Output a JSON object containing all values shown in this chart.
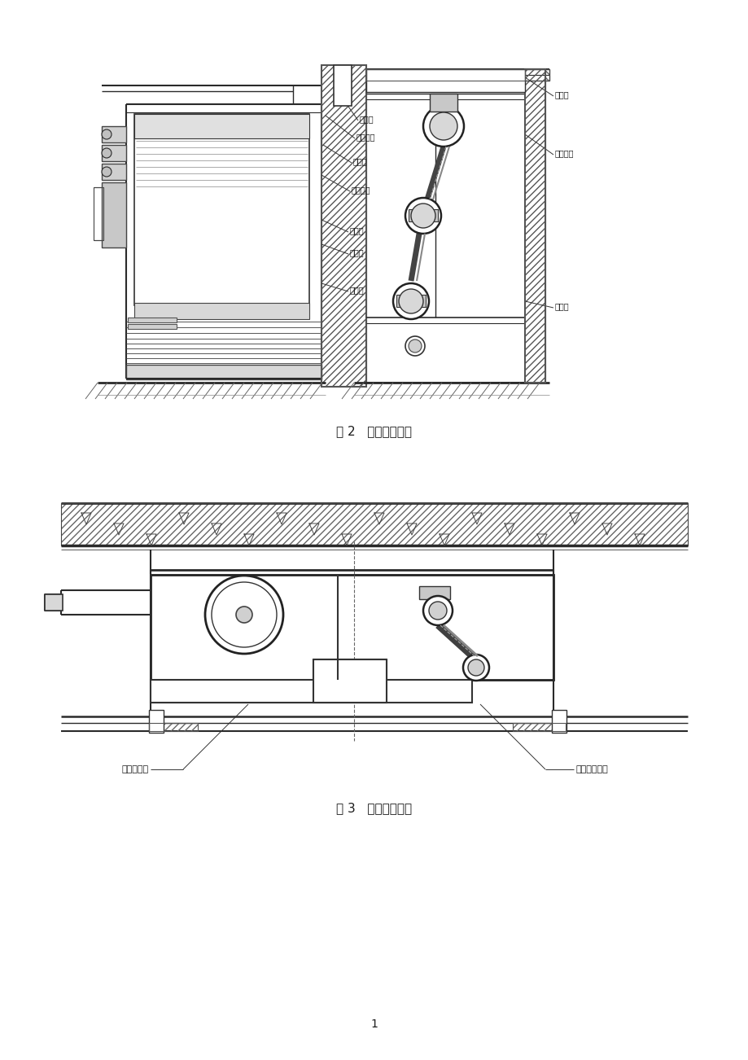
{
  "page_bg": "#ffffff",
  "fig_width": 9.2,
  "fig_height": 13.02,
  "dpi": 100,
  "fig2_caption": "图 2   立式暗装简图",
  "fig3_caption": "图 3   卡式暗装简图",
  "page_number": "1",
  "line_color": "#2a2a2a",
  "text_color": "#1a1a1a",
  "hatch_color": "#555555",
  "light_gray": "#cccccc"
}
